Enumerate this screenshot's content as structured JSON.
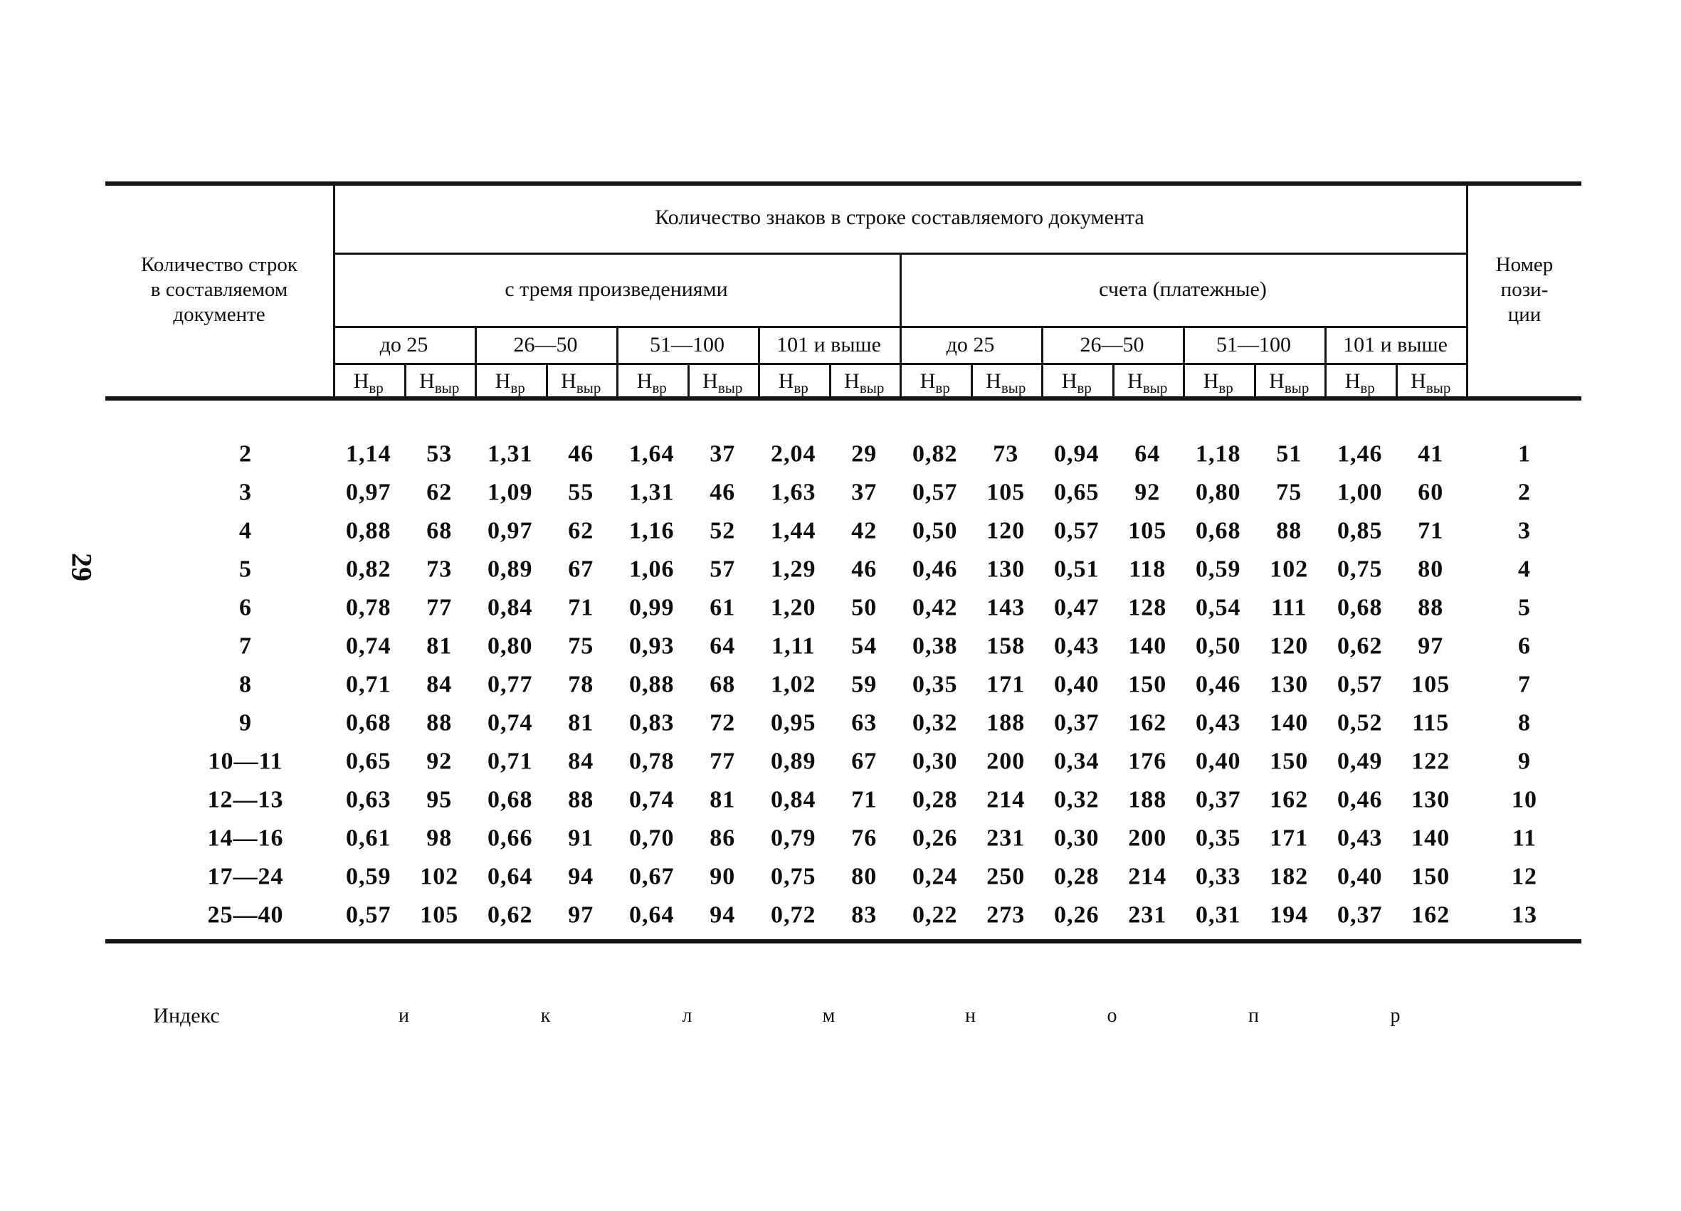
{
  "page": {
    "number": "29"
  },
  "table": {
    "group_header": "Количество знаков в строке составляемого документа",
    "stub_header_lines": [
      "Количество строк",
      "в составляемом",
      "документе"
    ],
    "pos_header_lines": [
      "Номер",
      "пози-",
      "ции"
    ],
    "subgroups": [
      "с тремя произведениями",
      "счета (платежные)"
    ],
    "ranges": [
      "до 25",
      "26—50",
      "51—100",
      "101 и выше",
      "до 25",
      "26—50",
      "51—100",
      "101 и выше"
    ],
    "measure_base": "Н",
    "measure_subs": [
      "вр",
      "выр",
      "вр",
      "выр",
      "вр",
      "выр",
      "вр",
      "выр",
      "вр",
      "выр",
      "вр",
      "выр",
      "вр",
      "выр",
      "вр",
      "выр"
    ],
    "rows": [
      {
        "lines": "2",
        "values": [
          "1,14",
          "53",
          "1,31",
          "46",
          "1,64",
          "37",
          "2,04",
          "29",
          "0,82",
          "73",
          "0,94",
          "64",
          "1,18",
          "51",
          "1,46",
          "41"
        ],
        "pos": "1"
      },
      {
        "lines": "3",
        "values": [
          "0,97",
          "62",
          "1,09",
          "55",
          "1,31",
          "46",
          "1,63",
          "37",
          "0,57",
          "105",
          "0,65",
          "92",
          "0,80",
          "75",
          "1,00",
          "60"
        ],
        "pos": "2"
      },
      {
        "lines": "4",
        "values": [
          "0,88",
          "68",
          "0,97",
          "62",
          "1,16",
          "52",
          "1,44",
          "42",
          "0,50",
          "120",
          "0,57",
          "105",
          "0,68",
          "88",
          "0,85",
          "71"
        ],
        "pos": "3"
      },
      {
        "lines": "5",
        "values": [
          "0,82",
          "73",
          "0,89",
          "67",
          "1,06",
          "57",
          "1,29",
          "46",
          "0,46",
          "130",
          "0,51",
          "118",
          "0,59",
          "102",
          "0,75",
          "80"
        ],
        "pos": "4"
      },
      {
        "lines": "6",
        "values": [
          "0,78",
          "77",
          "0,84",
          "71",
          "0,99",
          "61",
          "1,20",
          "50",
          "0,42",
          "143",
          "0,47",
          "128",
          "0,54",
          "111",
          "0,68",
          "88"
        ],
        "pos": "5"
      },
      {
        "lines": "7",
        "values": [
          "0,74",
          "81",
          "0,80",
          "75",
          "0,93",
          "64",
          "1,11",
          "54",
          "0,38",
          "158",
          "0,43",
          "140",
          "0,50",
          "120",
          "0,62",
          "97"
        ],
        "pos": "6"
      },
      {
        "lines": "8",
        "values": [
          "0,71",
          "84",
          "0,77",
          "78",
          "0,88",
          "68",
          "1,02",
          "59",
          "0,35",
          "171",
          "0,40",
          "150",
          "0,46",
          "130",
          "0,57",
          "105"
        ],
        "pos": "7"
      },
      {
        "lines": "9",
        "values": [
          "0,68",
          "88",
          "0,74",
          "81",
          "0,83",
          "72",
          "0,95",
          "63",
          "0,32",
          "188",
          "0,37",
          "162",
          "0,43",
          "140",
          "0,52",
          "115"
        ],
        "pos": "8"
      },
      {
        "lines": "10—11",
        "values": [
          "0,65",
          "92",
          "0,71",
          "84",
          "0,78",
          "77",
          "0,89",
          "67",
          "0,30",
          "200",
          "0,34",
          "176",
          "0,40",
          "150",
          "0,49",
          "122"
        ],
        "pos": "9"
      },
      {
        "lines": "12—13",
        "values": [
          "0,63",
          "95",
          "0,68",
          "88",
          "0,74",
          "81",
          "0,84",
          "71",
          "0,28",
          "214",
          "0,32",
          "188",
          "0,37",
          "162",
          "0,46",
          "130"
        ],
        "pos": "10"
      },
      {
        "lines": "14—16",
        "values": [
          "0,61",
          "98",
          "0,66",
          "91",
          "0,70",
          "86",
          "0,79",
          "76",
          "0,26",
          "231",
          "0,30",
          "200",
          "0,35",
          "171",
          "0,43",
          "140"
        ],
        "pos": "11"
      },
      {
        "lines": "17—24",
        "values": [
          "0,59",
          "102",
          "0,64",
          "94",
          "0,67",
          "90",
          "0,75",
          "80",
          "0,24",
          "250",
          "0,28",
          "214",
          "0,33",
          "182",
          "0,40",
          "150"
        ],
        "pos": "12"
      },
      {
        "lines": "25—40",
        "values": [
          "0,57",
          "105",
          "0,62",
          "97",
          "0,64",
          "94",
          "0,72",
          "83",
          "0,22",
          "273",
          "0,26",
          "231",
          "0,31",
          "194",
          "0,37",
          "162"
        ],
        "pos": "13"
      }
    ],
    "index_label": "Индекс",
    "index_letters": [
      "и",
      "к",
      "л",
      "м",
      "н",
      "о",
      "п",
      "р"
    ]
  }
}
